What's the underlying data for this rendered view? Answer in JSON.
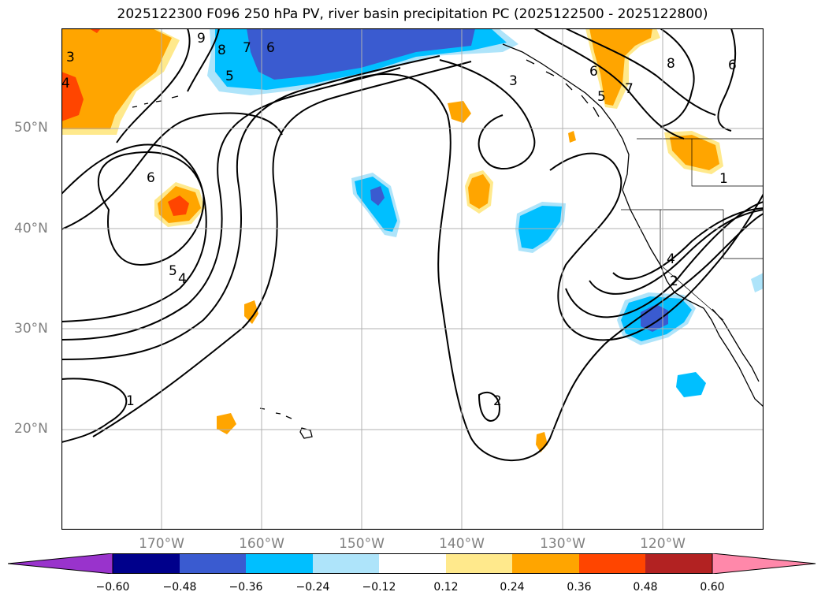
{
  "title": "2025122300 F096 250 hPa PV, river basin precipitation PC (2025122500 - 2025122800)",
  "lat_labels": [
    "50°N",
    "40°N",
    "30°N",
    "20°N"
  ],
  "lon_labels": [
    "170°W",
    "160°W",
    "150°W",
    "140°W",
    "130°W",
    "120°W"
  ],
  "colorbar": {
    "ticks": [
      "−0.60",
      "−0.48",
      "−0.36",
      "−0.24",
      "−0.12",
      "0.12",
      "0.24",
      "0.36",
      "0.48",
      "0.60"
    ],
    "colors": {
      "below_min": "#9933cc",
      "c1": "#00008b",
      "c2": "#3a5bd0",
      "c3": "#00bfff",
      "c4": "#aee4fa",
      "c5": "#ffffff",
      "c6": "#ffe98c",
      "c7": "#ffa500",
      "c8": "#ff4500",
      "c9": "#b22222",
      "above_max": "#ff88aa"
    }
  },
  "contour_labels": [
    "9",
    "8",
    "7",
    "6",
    "5",
    "4",
    "3",
    "6",
    "5",
    "4",
    "1",
    "3",
    "2",
    "6",
    "5",
    "7",
    "8",
    "6",
    "4",
    "2",
    "1"
  ]
}
